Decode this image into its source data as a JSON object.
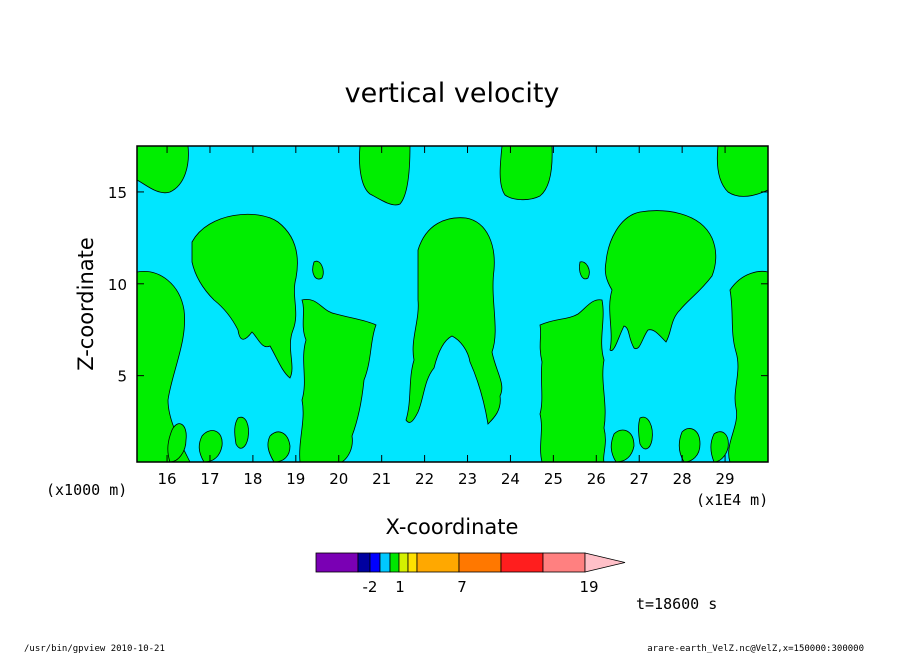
{
  "chart_data": {
    "type": "heatmap",
    "title": "vertical velocity",
    "xlabel": "X-coordinate",
    "ylabel": "Z-coordinate",
    "x_unit_left": "(x1000 m)",
    "x_unit_right": "(x1E4 m)",
    "xlim": [
      15.3,
      30.0
    ],
    "ylim": [
      0.3,
      17.5
    ],
    "x_ticks": [
      16,
      17,
      18,
      19,
      20,
      21,
      22,
      23,
      24,
      25,
      26,
      27,
      28,
      29
    ],
    "y_ticks": [
      5,
      10,
      15
    ],
    "fill_colors": {
      "background": "#00e6ff",
      "contour_fill": "#00ee00",
      "contour_line": "#000000"
    },
    "colorbar": {
      "colors": [
        "#7a00b4",
        "#0000a0",
        "#0000ff",
        "#00c8ff",
        "#00e600",
        "#d4f000",
        "#ffe000",
        "#ffa800",
        "#ff7800",
        "#ff1e1e",
        "#ff8080",
        "#ffc0c8"
      ],
      "tick_labels": [
        "-2",
        "1",
        "7",
        "19"
      ]
    },
    "time_label": "t=18600 s"
  },
  "footer": {
    "left": "/usr/bin/gpview  2010-10-21",
    "right": "arare-earth_VelZ.nc@VelZ,x=150000:300000"
  }
}
